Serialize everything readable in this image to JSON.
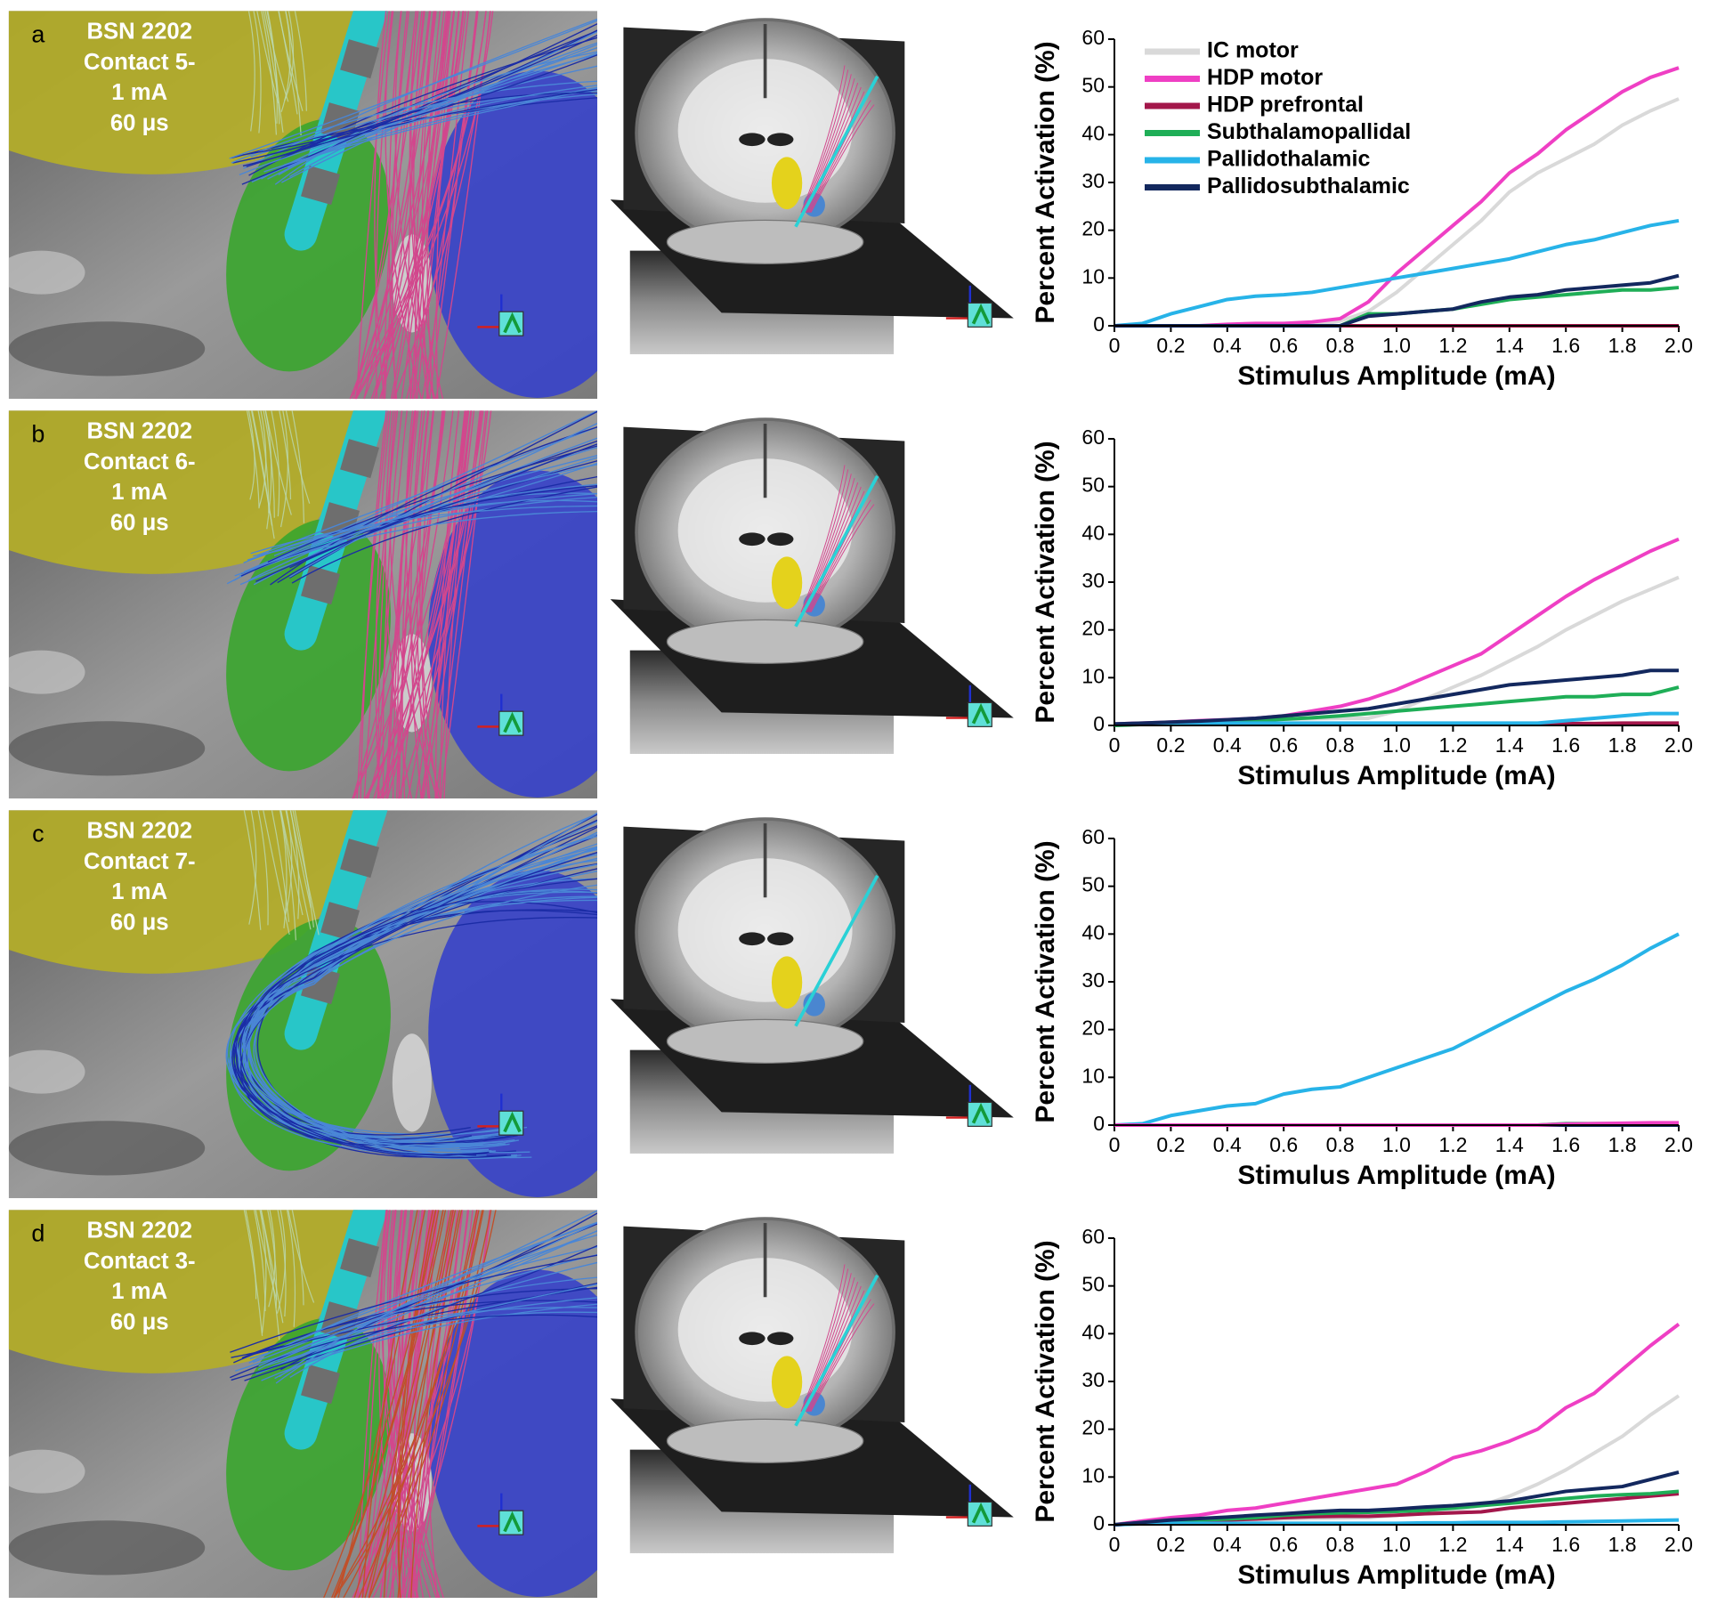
{
  "panels": [
    {
      "letter": "a",
      "lines": [
        "BSN 2202",
        "Contact 5-",
        "1 mA",
        "60 μs"
      ]
    },
    {
      "letter": "b",
      "lines": [
        "BSN 2202",
        "Contact 6-",
        "1 mA",
        "60 μs"
      ]
    },
    {
      "letter": "c",
      "lines": [
        "BSN 2202",
        "Contact 7-",
        "1 mA",
        "60 μs"
      ]
    },
    {
      "letter": "d",
      "lines": [
        "BSN 2202",
        "Contact 3-",
        "1 mA",
        "60 μs"
      ]
    }
  ],
  "chart_data": [
    {
      "type": "line",
      "xlabel": "Stimulus Amplitude (mA)",
      "ylabel": "Percent Activation (%)",
      "legend": "upper left",
      "x": [
        0,
        0.1,
        0.2,
        0.3,
        0.4,
        0.5,
        0.6,
        0.7,
        0.8,
        0.9,
        1.0,
        1.1,
        1.2,
        1.3,
        1.4,
        1.5,
        1.6,
        1.7,
        1.8,
        1.9,
        2.0
      ],
      "xlim": [
        0,
        2
      ],
      "ylim": [
        0,
        60
      ],
      "xticks": [
        0,
        0.2,
        0.4,
        0.6,
        0.8,
        {
          "value": 1,
          "label": "1.0"
        },
        1.2,
        1.4,
        1.6,
        1.8,
        {
          "value": 2,
          "label": "2.0"
        }
      ],
      "yticks": [
        0,
        10,
        20,
        30,
        40,
        50,
        60
      ],
      "series": [
        {
          "name": "IC motor",
          "color": "#d9d9d9",
          "values": [
            0,
            0,
            0,
            0,
            0,
            0,
            0,
            0,
            1,
            3,
            7,
            12,
            17,
            22,
            28,
            32,
            35,
            38,
            42,
            45,
            47.5
          ]
        },
        {
          "name": "HDP motor",
          "color": "#ef3fc4",
          "values": [
            0,
            0,
            0,
            0,
            0.3,
            0.5,
            0.5,
            0.8,
            1.5,
            5,
            11,
            16,
            21,
            26,
            32,
            36,
            41,
            45,
            49,
            52,
            54
          ]
        },
        {
          "name": "HDP prefrontal",
          "color": "#a3174b",
          "values": [
            0,
            0,
            0,
            0,
            0,
            0,
            0,
            0,
            0,
            0,
            0,
            0,
            0,
            0,
            0,
            0,
            0,
            0,
            0,
            0,
            0
          ]
        },
        {
          "name": "Subthalamopallidal",
          "color": "#1fae57",
          "values": [
            0,
            0,
            0,
            0,
            0,
            0,
            0,
            0,
            0,
            2.5,
            2.5,
            3,
            3.5,
            4.5,
            5.5,
            6,
            6.5,
            7,
            7.5,
            7.5,
            8
          ]
        },
        {
          "name": "Pallidothalamic",
          "color": "#27b3e8",
          "values": [
            0,
            0.5,
            2.5,
            4,
            5.5,
            6.2,
            6.5,
            7,
            8,
            9,
            10,
            11,
            12,
            13,
            14,
            15.5,
            17,
            18,
            19.5,
            21,
            22
          ]
        },
        {
          "name": "Pallidosubthalamic",
          "color": "#13285e",
          "values": [
            0,
            0,
            0,
            0,
            0,
            0,
            0,
            0,
            0,
            2,
            2.5,
            3,
            3.5,
            5,
            6,
            6.5,
            7.5,
            8,
            8.5,
            9,
            10.5
          ]
        }
      ]
    },
    {
      "type": "line",
      "xlabel": "Stimulus Amplitude (mA)",
      "ylabel": "Percent Activation (%)",
      "x": [
        0,
        0.1,
        0.2,
        0.3,
        0.4,
        0.5,
        0.6,
        0.7,
        0.8,
        0.9,
        1.0,
        1.1,
        1.2,
        1.3,
        1.4,
        1.5,
        1.6,
        1.7,
        1.8,
        1.9,
        2.0
      ],
      "xlim": [
        0,
        2
      ],
      "ylim": [
        0,
        60
      ],
      "xticks": [
        0,
        0.2,
        0.4,
        0.6,
        0.8,
        {
          "value": 1,
          "label": "1.0"
        },
        1.2,
        1.4,
        1.6,
        1.8,
        {
          "value": 2,
          "label": "2.0"
        }
      ],
      "yticks": [
        0,
        10,
        20,
        30,
        40,
        50,
        60
      ],
      "series": [
        {
          "color": "#d9d9d9",
          "values": [
            0.3,
            0.5,
            0.6,
            0.8,
            1,
            1.2,
            1.3,
            1.4,
            1.5,
            1.5,
            3,
            5.5,
            8,
            10.5,
            13.5,
            16.5,
            20,
            23,
            26,
            28.5,
            31
          ]
        },
        {
          "color": "#ef3fc4",
          "values": [
            0.3,
            0.5,
            0.7,
            1,
            1.2,
            1.5,
            2,
            3,
            4,
            5.5,
            7.5,
            10,
            12.5,
            15,
            19,
            23,
            27,
            30.5,
            33.5,
            36.5,
            39
          ]
        },
        {
          "color": "#a3174b",
          "values": [
            0.3,
            0.3,
            0.3,
            0.3,
            0.3,
            0.3,
            0.3,
            0.3,
            0.3,
            0.3,
            0.3,
            0.3,
            0.3,
            0.3,
            0.3,
            0.3,
            0.4,
            0.4,
            0.5,
            0.5,
            0.5
          ]
        },
        {
          "color": "#1fae57",
          "values": [
            0,
            0.2,
            0.4,
            0.6,
            0.8,
            1,
            1.3,
            1.6,
            2,
            2.5,
            3,
            3.5,
            4,
            4.5,
            5,
            5.5,
            6,
            6,
            6.5,
            6.5,
            8
          ]
        },
        {
          "color": "#27b3e8",
          "values": [
            0.3,
            0.3,
            0.4,
            0.4,
            0.5,
            0.5,
            0.5,
            0.5,
            0.5,
            0.5,
            0.5,
            0.5,
            0.5,
            0.5,
            0.5,
            0.5,
            1,
            1.5,
            2,
            2.5,
            2.5
          ]
        },
        {
          "color": "#13285e",
          "values": [
            0.3,
            0.5,
            0.7,
            0.9,
            1.2,
            1.5,
            2,
            2.5,
            3,
            3.5,
            4.5,
            5.5,
            6.5,
            7.5,
            8.5,
            9,
            9.5,
            10,
            10.5,
            11.5,
            11.5
          ]
        }
      ]
    },
    {
      "type": "line",
      "xlabel": "Stimulus Amplitude (mA)",
      "ylabel": "Percent Activation (%)",
      "x": [
        0,
        0.1,
        0.2,
        0.3,
        0.4,
        0.5,
        0.6,
        0.7,
        0.8,
        0.9,
        1.0,
        1.1,
        1.2,
        1.3,
        1.4,
        1.5,
        1.6,
        1.7,
        1.8,
        1.9,
        2.0
      ],
      "xlim": [
        0,
        2
      ],
      "ylim": [
        0,
        60
      ],
      "xticks": [
        0,
        0.2,
        0.4,
        0.6,
        0.8,
        {
          "value": 1,
          "label": "1.0"
        },
        1.2,
        1.4,
        1.6,
        1.8,
        {
          "value": 2,
          "label": "2.0"
        }
      ],
      "yticks": [
        0,
        10,
        20,
        30,
        40,
        50,
        60
      ],
      "series": [
        {
          "color": "#d9d9d9",
          "values": [
            0,
            0,
            0,
            0,
            0,
            0,
            0,
            0,
            0,
            0,
            0,
            0,
            0,
            0,
            0,
            0,
            0.3,
            0.3,
            0.3,
            0.3,
            0.3
          ]
        },
        {
          "color": "#a3174b",
          "values": [
            0,
            0,
            0,
            0,
            0,
            0,
            0,
            0,
            0,
            0,
            0,
            0,
            0,
            0,
            0,
            0,
            0,
            0,
            0,
            0,
            0
          ]
        },
        {
          "color": "#1fae57",
          "values": [
            0,
            0,
            0,
            0,
            0,
            0,
            0,
            0,
            0,
            0,
            0,
            0,
            0,
            0,
            0,
            0,
            0.3,
            0.3,
            0.3,
            0.3,
            0.3
          ]
        },
        {
          "color": "#13285e",
          "values": [
            0,
            0,
            0,
            0,
            0,
            0,
            0,
            0,
            0,
            0,
            0,
            0,
            0,
            0,
            0,
            0,
            0,
            0,
            0,
            0,
            0
          ]
        },
        {
          "color": "#27b3e8",
          "values": [
            0,
            0.3,
            2,
            3,
            4,
            4.5,
            6.5,
            7.5,
            8,
            10,
            12,
            14,
            16,
            19,
            22,
            25,
            28,
            30.5,
            33.5,
            37,
            40
          ]
        },
        {
          "color": "#ef3fc4",
          "values": [
            0,
            0,
            0,
            0,
            0,
            0,
            0,
            0,
            0,
            0,
            0,
            0,
            0,
            0,
            0,
            0,
            0.2,
            0.3,
            0.4,
            0.5,
            0.5
          ]
        }
      ]
    },
    {
      "type": "line",
      "xlabel": "Stimulus Amplitude (mA)",
      "ylabel": "Percent Activation (%)",
      "x": [
        0,
        0.1,
        0.2,
        0.3,
        0.4,
        0.5,
        0.6,
        0.7,
        0.8,
        0.9,
        1.0,
        1.1,
        1.2,
        1.3,
        1.4,
        1.5,
        1.6,
        1.7,
        1.8,
        1.9,
        2.0
      ],
      "xlim": [
        0,
        2
      ],
      "ylim": [
        0,
        60
      ],
      "xticks": [
        0,
        0.2,
        0.4,
        0.6,
        0.8,
        {
          "value": 1,
          "label": "1.0"
        },
        1.2,
        1.4,
        1.6,
        1.8,
        {
          "value": 2,
          "label": "2.0"
        }
      ],
      "yticks": [
        0,
        10,
        20,
        30,
        40,
        50,
        60
      ],
      "series": [
        {
          "color": "#d9d9d9",
          "values": [
            0,
            0.2,
            0.4,
            0.6,
            0.8,
            1,
            1.2,
            1.3,
            1.4,
            1.5,
            2,
            2.5,
            3,
            4,
            6,
            8.5,
            11.5,
            15,
            18.5,
            23,
            27
          ]
        },
        {
          "color": "#ef3fc4",
          "values": [
            0,
            0.8,
            1.5,
            2,
            3,
            3.5,
            4.5,
            5.5,
            6.5,
            7.5,
            8.5,
            11,
            14,
            15.5,
            17.5,
            20,
            24.5,
            27.5,
            32.5,
            37.5,
            42
          ]
        },
        {
          "color": "#a3174b",
          "values": [
            0,
            0.3,
            0.5,
            0.8,
            1,
            1.2,
            1.5,
            1.7,
            1.8,
            1.8,
            2,
            2.3,
            2.5,
            2.7,
            3.5,
            4,
            4.5,
            5,
            5.5,
            6,
            6.5
          ]
        },
        {
          "color": "#1fae57",
          "values": [
            0,
            0.5,
            0.8,
            1,
            1.2,
            1.5,
            2,
            2.3,
            2.5,
            2.6,
            2.8,
            3,
            3.5,
            4,
            4.5,
            5,
            5.5,
            6,
            6.3,
            6.5,
            7
          ]
        },
        {
          "color": "#27b3e8",
          "values": [
            0,
            0.2,
            0.3,
            0.3,
            0.3,
            0.3,
            0.3,
            0.3,
            0.3,
            0.3,
            0.3,
            0.4,
            0.4,
            0.5,
            0.5,
            0.5,
            0.6,
            0.7,
            0.8,
            0.9,
            1
          ]
        },
        {
          "color": "#13285e",
          "values": [
            0,
            0.5,
            1,
            1.3,
            1.6,
            2,
            2.3,
            2.7,
            3,
            3,
            3.3,
            3.7,
            4,
            4.5,
            5,
            6,
            7,
            7.5,
            8,
            9.5,
            11
          ]
        }
      ]
    }
  ]
}
